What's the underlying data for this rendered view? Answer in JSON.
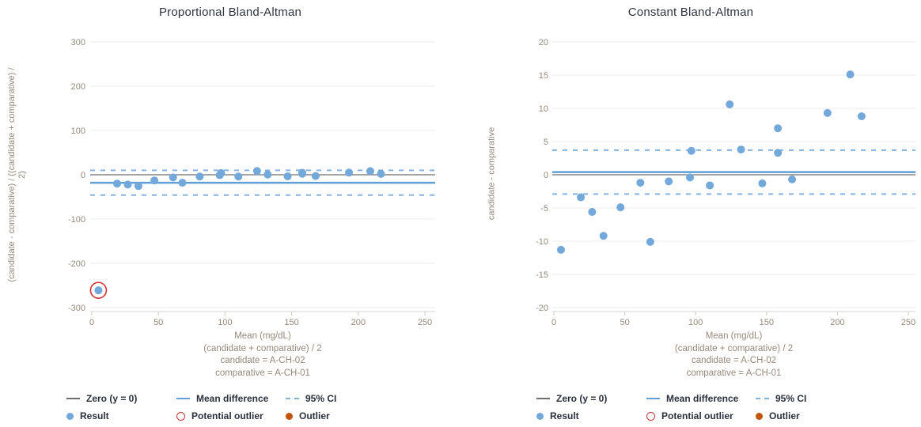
{
  "colors": {
    "title": "#303440",
    "axis_text": "#94897b",
    "grid": "#e8e8e8",
    "axis_line": "#d8d5d0",
    "tick_mark": "#ccc8c2",
    "zero_line": "#6f6f6f",
    "mean_line": "#5f9fd8",
    "ci_line": "#82b3e3",
    "point_fill": "#73a8db",
    "potential_outlier_ring": "#d03434",
    "outlier_fill": "#c2540c",
    "legend_text": "#2b303c"
  },
  "legend": {
    "items": [
      {
        "label": "Zero (y = 0)",
        "swatch": "gray-solid-line"
      },
      {
        "label": "Mean difference",
        "swatch": "blue-solid-line"
      },
      {
        "label": "95% CI",
        "swatch": "blue-dashed-line"
      },
      {
        "label": "Result",
        "swatch": "blue-dot"
      },
      {
        "label": "Potential outlier",
        "swatch": "red-open-circle"
      },
      {
        "label": "Outlier",
        "swatch": "orange-dot"
      }
    ]
  },
  "chart_data": [
    {
      "type": "scatter",
      "title": "Proportional Bland-Altman",
      "ylabel": "(candidate - comparative) / ((candidate + comparative) / 2)",
      "ylabel_lines": [
        "(candidate - comparative) / ((candidate + comparative) /",
        "2)"
      ],
      "xlabel_lines": [
        "Mean (mg/dL)",
        "(candidate + comparative) / 2",
        "candidate = A-CH-02",
        "comparative = A-CH-01"
      ],
      "xlim": [
        0,
        250
      ],
      "ylim": [
        -300,
        300
      ],
      "xticks": [
        0,
        50,
        100,
        150,
        200,
        250
      ],
      "yticks": [
        300,
        200,
        100,
        0,
        -100,
        -200,
        -300
      ],
      "grid": "horizontal",
      "legend_position": "bottom",
      "zero_line": 0,
      "mean_difference": -18,
      "ci_95": [
        10,
        -46
      ],
      "x": [
        5,
        19,
        27,
        35,
        47,
        61,
        68,
        81,
        96,
        97,
        110,
        124,
        132,
        147,
        158,
        158,
        168,
        193,
        209,
        217
      ],
      "y": [
        -261,
        -20,
        -22,
        -25.5,
        -13,
        -6,
        -18,
        -4,
        -1,
        3.7,
        -4,
        8.5,
        0.5,
        -3.5,
        2.2,
        4.4,
        -2.9,
        4.8,
        8.3,
        2
      ],
      "potential_outlier_indices": [
        0
      ],
      "outlier_indices": []
    },
    {
      "type": "scatter",
      "title": "Constant Bland-Altman",
      "ylabel": "candidate - comparative",
      "ylabel_lines": [
        "candidate - comparative"
      ],
      "xlabel_lines": [
        "Mean (mg/dL)",
        "(candidate + comparative) / 2",
        "candidate = A-CH-02",
        "comparative = A-CH-01"
      ],
      "xlim": [
        0,
        250
      ],
      "ylim": [
        -20,
        20
      ],
      "xticks": [
        0,
        50,
        100,
        150,
        200,
        250
      ],
      "yticks": [
        20,
        15,
        10,
        5,
        0,
        -5,
        -10,
        -15,
        -20
      ],
      "grid": "horizontal",
      "legend_position": "bottom",
      "zero_line": 0,
      "mean_difference": 0.4,
      "ci_95": [
        3.7,
        -2.9
      ],
      "x": [
        5,
        19,
        27,
        35,
        47,
        61,
        68,
        81,
        96,
        97,
        110,
        124,
        132,
        147,
        158,
        158,
        168,
        193,
        209,
        217
      ],
      "y": [
        -11.3,
        -3.4,
        -5.6,
        -9.2,
        -4.9,
        -1.2,
        -10.1,
        -1.0,
        -0.4,
        3.6,
        -1.6,
        10.6,
        3.8,
        -1.3,
        3.3,
        7.0,
        -0.7,
        9.3,
        15.1,
        8.8
      ],
      "potential_outlier_indices": [],
      "outlier_indices": []
    }
  ]
}
